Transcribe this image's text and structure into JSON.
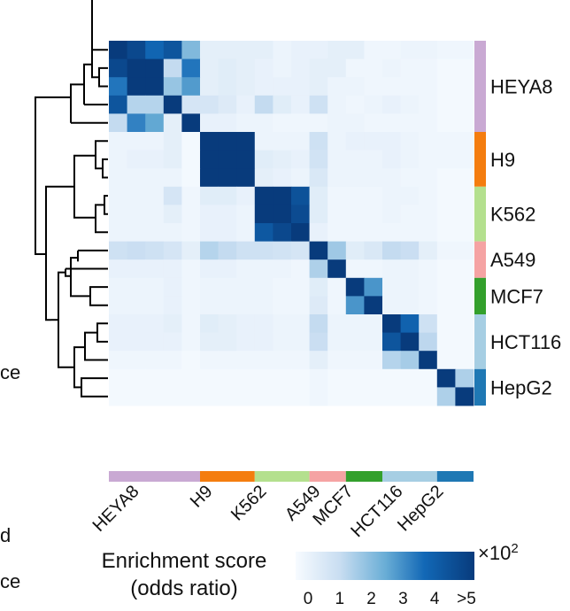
{
  "chart_data": {
    "type": "heatmap",
    "title": "",
    "cell_lines": [
      {
        "name": "HEYA8",
        "samples": 5,
        "color": "#c9a9d3"
      },
      {
        "name": "H9",
        "samples": 3,
        "color": "#f47d0f"
      },
      {
        "name": "K562",
        "samples": 3,
        "color": "#b4e08e"
      },
      {
        "name": "A549",
        "samples": 2,
        "color": "#f5a3a3"
      },
      {
        "name": "MCF7",
        "samples": 2,
        "color": "#33a02c"
      },
      {
        "name": "HCT116",
        "samples": 3,
        "color": "#a6cee3"
      },
      {
        "name": "HepG2",
        "samples": 2,
        "color": "#1f78b4"
      }
    ],
    "matrix": [
      [
        5,
        4.6,
        3.7,
        4.2,
        2.2,
        0.5,
        0.5,
        0.5,
        0.5,
        0.3,
        0.4,
        0.4,
        0.5,
        0.5,
        0.2,
        0.2,
        0.3,
        0.3,
        0.2,
        0.2
      ],
      [
        4.6,
        5,
        5,
        1.3,
        3.4,
        0.5,
        0.6,
        0.5,
        0.4,
        0.3,
        0.4,
        0.5,
        0.5,
        0.2,
        0.2,
        0.3,
        0.2,
        0.2,
        0.1,
        0.1
      ],
      [
        3.4,
        5,
        5,
        1.9,
        2.8,
        0.5,
        0.6,
        0.5,
        0.4,
        0.4,
        0.4,
        0.5,
        0.3,
        0.3,
        0.2,
        0.2,
        0.2,
        0.2,
        0.1,
        0.1
      ],
      [
        4.2,
        1.5,
        1.5,
        5,
        0.9,
        0.9,
        0.7,
        0.4,
        1.3,
        0.6,
        0.4,
        1.1,
        0.3,
        0.2,
        0.3,
        0.4,
        0.3,
        0.2,
        0.1,
        0.1
      ],
      [
        1.3,
        3.2,
        2.6,
        0.5,
        5,
        0.4,
        0.4,
        0.3,
        0.3,
        0.2,
        0.2,
        0.2,
        0.3,
        0.3,
        0.2,
        0.2,
        0.2,
        0.2,
        0.1,
        0.1
      ],
      [
        0.3,
        0.3,
        0.3,
        0.5,
        0.1,
        5,
        5,
        5,
        0.3,
        0.3,
        0.3,
        1.1,
        0.3,
        0.4,
        0.4,
        0.4,
        0.3,
        0.2,
        0.2,
        0.2
      ],
      [
        0.3,
        0.4,
        0.4,
        0.5,
        0.1,
        5,
        5,
        5,
        0.6,
        0.5,
        0.4,
        1.0,
        0.3,
        0.3,
        0.3,
        0.4,
        0.3,
        0.2,
        0.2,
        0.2
      ],
      [
        0.3,
        0.3,
        0.3,
        0.3,
        0.1,
        5,
        5,
        5,
        0.5,
        0.4,
        0.3,
        0.8,
        0.3,
        0.3,
        0.3,
        0.3,
        0.2,
        0.2,
        0.1,
        0.1
      ],
      [
        0.3,
        0.3,
        0.3,
        0.9,
        0.2,
        0.6,
        0.6,
        0.4,
        5,
        5,
        4.3,
        0.6,
        0.2,
        0.2,
        0.2,
        0.3,
        0.3,
        0.2,
        0.1,
        0.1
      ],
      [
        0.3,
        0.3,
        0.3,
        0.5,
        0.2,
        0.4,
        0.4,
        0.3,
        5,
        5,
        4.5,
        0.6,
        0.2,
        0.2,
        0.2,
        0.3,
        0.2,
        0.2,
        0.1,
        0.1
      ],
      [
        0.3,
        0.3,
        0.3,
        0.3,
        0.2,
        0.4,
        0.4,
        0.3,
        4.1,
        4.6,
        5,
        0.4,
        0.2,
        0.2,
        0.2,
        0.2,
        0.2,
        0.2,
        0.1,
        0.1
      ],
      [
        1.1,
        1.2,
        1.1,
        0.9,
        0.5,
        1.5,
        1.3,
        1.1,
        1.1,
        1.0,
        0.9,
        5,
        1.8,
        0.6,
        0.8,
        1.3,
        1.2,
        0.5,
        0.2,
        0.2
      ],
      [
        0.4,
        0.4,
        0.4,
        0.4,
        0.2,
        0.4,
        0.4,
        0.3,
        0.3,
        0.3,
        0.2,
        1.6,
        5,
        0.2,
        0.2,
        0.3,
        0.3,
        0.2,
        0.1,
        0.1
      ],
      [
        0.3,
        0.3,
        0.3,
        0.4,
        0.2,
        0.3,
        0.3,
        0.3,
        0.3,
        0.2,
        0.2,
        0.6,
        0.2,
        5,
        2.9,
        0.3,
        0.3,
        0.2,
        0.1,
        0.1
      ],
      [
        0.3,
        0.3,
        0.3,
        0.4,
        0.2,
        0.3,
        0.3,
        0.3,
        0.3,
        0.2,
        0.2,
        0.7,
        0.2,
        2.9,
        5,
        0.3,
        0.3,
        0.2,
        0.1,
        0.1
      ],
      [
        0.4,
        0.4,
        0.4,
        0.5,
        0.2,
        0.6,
        0.5,
        0.4,
        0.4,
        0.3,
        0.3,
        1.3,
        0.3,
        0.3,
        0.3,
        5,
        3.8,
        1.1,
        0.1,
        0.1
      ],
      [
        0.4,
        0.4,
        0.4,
        0.4,
        0.2,
        0.5,
        0.5,
        0.4,
        0.4,
        0.3,
        0.3,
        1.2,
        0.3,
        0.3,
        0.3,
        4.2,
        5,
        1.4,
        0.1,
        0.1
      ],
      [
        0.2,
        0.2,
        0.2,
        0.2,
        0.1,
        0.2,
        0.2,
        0.2,
        0.2,
        0.2,
        0.2,
        0.5,
        0.2,
        0.2,
        0.2,
        1.5,
        1.7,
        5,
        0.1,
        0.1
      ],
      [
        0.1,
        0.1,
        0.1,
        0.1,
        0.1,
        0.1,
        0.1,
        0.1,
        0.1,
        0.1,
        0.1,
        0.2,
        0.1,
        0.1,
        0.1,
        0.1,
        0.1,
        0.1,
        5,
        1.6
      ],
      [
        0.1,
        0.1,
        0.1,
        0.1,
        0.1,
        0.1,
        0.1,
        0.1,
        0.1,
        0.1,
        0.1,
        0.2,
        0.1,
        0.1,
        0.1,
        0.1,
        0.1,
        0.1,
        1.6,
        5
      ]
    ],
    "colorbar": {
      "title_line1": "Enrichment score",
      "title_line2": "(odds ratio)",
      "scale_label": "×10",
      "scale_exp": "2",
      "ticks": [
        "0",
        "1",
        "2",
        "3",
        "4",
        ">5"
      ],
      "range": [
        0,
        5
      ]
    },
    "clipped_left_fragments": [
      "ce",
      "d",
      "ce"
    ]
  }
}
